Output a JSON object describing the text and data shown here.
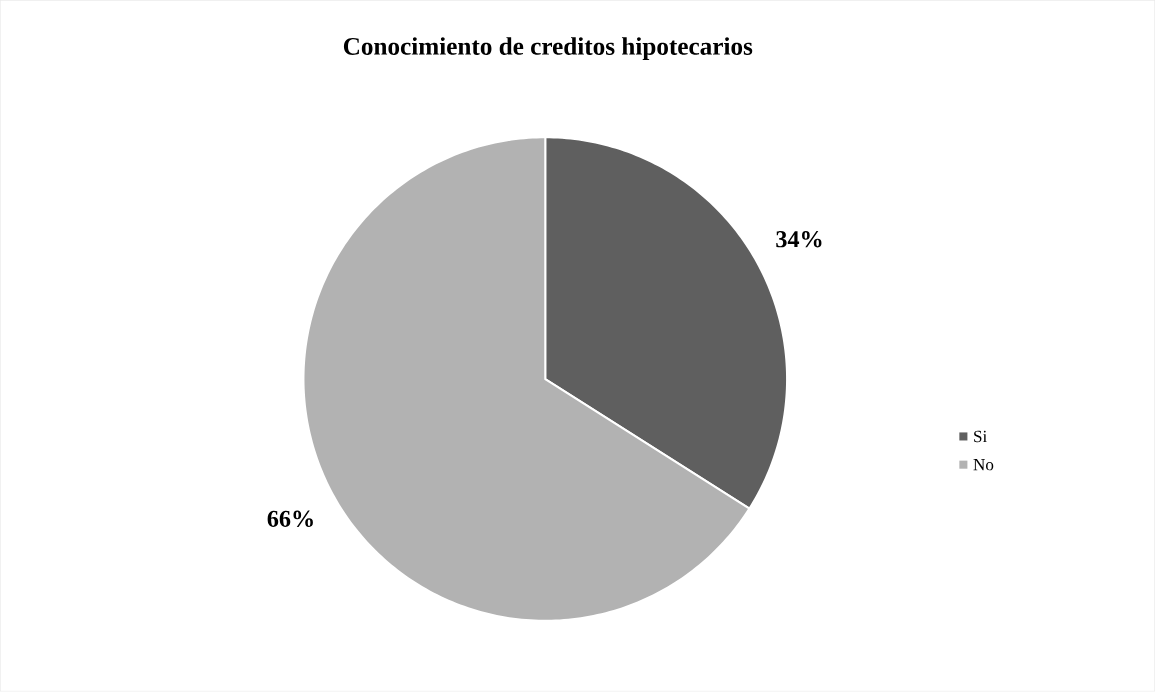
{
  "chart_data": {
    "type": "pie",
    "title": "Conocimiento de creditos hipotecarios",
    "categories": [
      "Si",
      "No"
    ],
    "values": [
      34,
      66
    ],
    "colors": [
      "#5f5f5f",
      "#b2b2b2"
    ],
    "value_labels": [
      "34%",
      "66%"
    ],
    "legend": "right"
  }
}
